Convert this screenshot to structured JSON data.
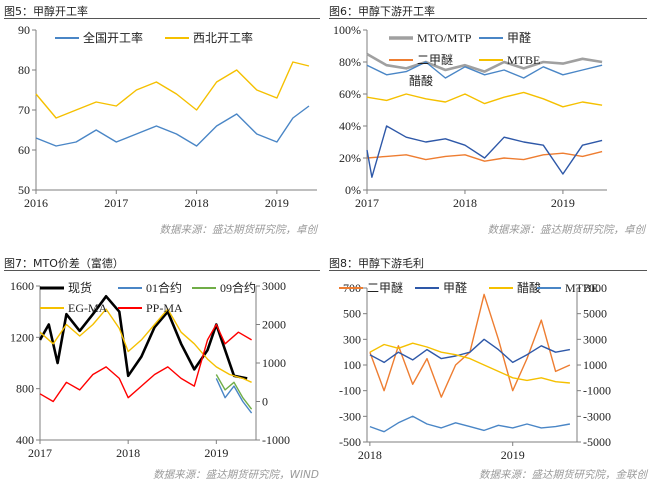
{
  "colors": {
    "blue": "#4a86c6",
    "yellow": "#f5c000",
    "gray": "#a0a0a0",
    "orange": "#ee7d31",
    "black": "#000000",
    "green": "#70ad47",
    "red": "#ff0000",
    "darkblue": "#2e58a8"
  },
  "charts": [
    {
      "title": "图5：甲醇开工率",
      "source": "数据来源：盛达期货研究院，卓创"
    },
    {
      "title": "图6：甲醇下游开工率",
      "source": "数据来源：盛达期货研究院，卓创"
    },
    {
      "title": "图7：MTO价差（富德）",
      "source": "数据来源：盛达期货研究院，WIND"
    },
    {
      "title": "图8：甲醇下游毛利",
      "source": "数据来源：盛达期货研究院，金联创"
    }
  ],
  "chart_data": [
    {
      "type": "line",
      "title": "",
      "x_ticks": [
        "2016",
        "2017",
        "2018",
        "2019"
      ],
      "x_range": [
        2016.0,
        2019.5
      ],
      "ylim": [
        50,
        90
      ],
      "y_ticks": [
        "50",
        "60",
        "70",
        "80",
        "90"
      ],
      "grid": false,
      "legend_position": "top",
      "series": [
        {
          "name": "全国开工率",
          "color": "#4a86c6",
          "x": [
            2016.0,
            2016.25,
            2016.5,
            2016.75,
            2017.0,
            2017.25,
            2017.5,
            2017.75,
            2018.0,
            2018.25,
            2018.5,
            2018.75,
            2019.0,
            2019.2,
            2019.4
          ],
          "y": [
            63,
            61,
            62,
            65,
            62,
            64,
            66,
            64,
            61,
            66,
            69,
            64,
            62,
            68,
            71
          ]
        },
        {
          "name": "西北开工率",
          "color": "#f5c000",
          "x": [
            2016.0,
            2016.25,
            2016.5,
            2016.75,
            2017.0,
            2017.25,
            2017.5,
            2017.75,
            2018.0,
            2018.25,
            2018.5,
            2018.75,
            2019.0,
            2019.2,
            2019.4
          ],
          "y": [
            74,
            68,
            70,
            72,
            71,
            75,
            77,
            74,
            70,
            77,
            80,
            75,
            73,
            82,
            81
          ]
        }
      ]
    },
    {
      "type": "line",
      "title": "",
      "x_ticks": [
        "2017",
        "2018",
        "2019"
      ],
      "x_range": [
        2017.0,
        2019.45
      ],
      "ylim": [
        0,
        100
      ],
      "y_ticks": [
        "0%",
        "20%",
        "40%",
        "60%",
        "80%",
        "100%"
      ],
      "y_unit": "%",
      "grid": false,
      "legend_position": "top",
      "series": [
        {
          "name": "MTO/MTP",
          "color": "#a0a0a0",
          "x": [
            2017.0,
            2017.2,
            2017.4,
            2017.6,
            2017.8,
            2018.0,
            2018.2,
            2018.4,
            2018.6,
            2018.8,
            2019.0,
            2019.2,
            2019.4
          ],
          "y": [
            85,
            78,
            76,
            80,
            75,
            78,
            74,
            80,
            76,
            80,
            79,
            82,
            80
          ]
        },
        {
          "name": "甲醛",
          "color": "#4a86c6",
          "x": [
            2017.0,
            2017.2,
            2017.4,
            2017.6,
            2017.8,
            2018.0,
            2018.2,
            2018.4,
            2018.6,
            2018.8,
            2019.0,
            2019.2,
            2019.4
          ],
          "y": [
            78,
            72,
            74,
            80,
            70,
            77,
            72,
            75,
            70,
            77,
            72,
            75,
            78
          ]
        },
        {
          "name": "二甲醚",
          "color": "#ee7d31",
          "x": [
            2017.0,
            2017.2,
            2017.4,
            2017.6,
            2017.8,
            2018.0,
            2018.2,
            2018.4,
            2018.6,
            2018.8,
            2019.0,
            2019.2,
            2019.4
          ],
          "y": [
            20,
            21,
            22,
            19,
            21,
            22,
            18,
            20,
            19,
            22,
            23,
            21,
            24
          ]
        },
        {
          "name": "MTBE",
          "color": "#f5c000",
          "x": [
            2017.0,
            2017.2,
            2017.4,
            2017.6,
            2017.8,
            2018.0,
            2018.2,
            2018.4,
            2018.6,
            2018.8,
            2019.0,
            2019.2,
            2019.4
          ],
          "y": [
            58,
            56,
            60,
            57,
            55,
            60,
            54,
            58,
            61,
            57,
            52,
            55,
            53
          ]
        },
        {
          "name": "醋酸",
          "color": "#2e58a8",
          "x": [
            2017.0,
            2017.05,
            2017.2,
            2017.4,
            2017.6,
            2017.8,
            2018.0,
            2018.2,
            2018.4,
            2018.6,
            2018.8,
            2019.0,
            2019.2,
            2019.4
          ],
          "y": [
            25,
            8,
            40,
            33,
            30,
            32,
            28,
            20,
            33,
            30,
            28,
            10,
            28,
            31
          ]
        }
      ]
    },
    {
      "type": "line",
      "title": "",
      "x_ticks": [
        "2017",
        "2018",
        "2019"
      ],
      "x_range": [
        2017.0,
        2019.45
      ],
      "ylim": [
        400,
        1600
      ],
      "y_ticks": [
        "400",
        "800",
        "1200",
        "1600"
      ],
      "y2lim": [
        -1000,
        3000
      ],
      "y2_ticks": [
        "-1000",
        "0",
        "1000",
        "2000",
        "3000"
      ],
      "grid": false,
      "legend_position": "top",
      "series": [
        {
          "name": "现货",
          "axis": "left",
          "color": "#000000",
          "x": [
            2017.0,
            2017.1,
            2017.2,
            2017.3,
            2017.45,
            2017.6,
            2017.75,
            2017.9,
            2018.0,
            2018.15,
            2018.3,
            2018.45,
            2018.6,
            2018.75,
            2018.9,
            2019.0,
            2019.2,
            2019.35
          ],
          "y": [
            1180,
            1300,
            1000,
            1380,
            1250,
            1380,
            1520,
            1400,
            900,
            1050,
            1280,
            1400,
            1150,
            950,
            1100,
            1300,
            900,
            880
          ]
        },
        {
          "name": "01合约",
          "axis": "right",
          "color": "#4a86c6",
          "x": [
            2019.0,
            2019.1,
            2019.2,
            2019.3,
            2019.4
          ],
          "y": [
            600,
            100,
            400,
            0,
            -300
          ]
        },
        {
          "name": "09合约",
          "axis": "right",
          "color": "#70ad47",
          "x": [
            2019.0,
            2019.1,
            2019.2,
            2019.3,
            2019.4
          ],
          "y": [
            700,
            300,
            500,
            100,
            -200
          ]
        },
        {
          "name": "EG-MA",
          "axis": "right",
          "color": "#f5c000",
          "x": [
            2017.0,
            2017.15,
            2017.3,
            2017.45,
            2017.6,
            2017.75,
            2017.9,
            2018.0,
            2018.15,
            2018.3,
            2018.45,
            2018.6,
            2018.75,
            2018.9,
            2019.0,
            2019.15,
            2019.3,
            2019.4
          ],
          "y": [
            1800,
            1500,
            2000,
            1700,
            2000,
            2400,
            1900,
            1300,
            1600,
            2000,
            2400,
            1800,
            1500,
            1100,
            900,
            700,
            600,
            500
          ]
        },
        {
          "name": "PP-MA",
          "axis": "right",
          "color": "#ff0000",
          "x": [
            2017.0,
            2017.15,
            2017.3,
            2017.45,
            2017.6,
            2017.75,
            2017.9,
            2018.0,
            2018.15,
            2018.3,
            2018.45,
            2018.6,
            2018.75,
            2018.9,
            2019.0,
            2019.1,
            2019.25,
            2019.4
          ],
          "y": [
            200,
            0,
            500,
            300,
            700,
            900,
            600,
            100,
            400,
            700,
            900,
            600,
            400,
            1600,
            2000,
            1500,
            1800,
            1600
          ]
        }
      ]
    },
    {
      "type": "line",
      "title": "",
      "x_ticks": [
        "2018",
        "2019"
      ],
      "x_range": [
        2017.98,
        2019.45
      ],
      "ylim": [
        -500,
        700
      ],
      "y_ticks": [
        "-500",
        "-300",
        "-100",
        "100",
        "300",
        "500",
        "700"
      ],
      "y2lim": [
        -5000,
        7000
      ],
      "y2_ticks": [
        "-5000",
        "-3000",
        "-1000",
        "1000",
        "3000",
        "5000",
        "7000"
      ],
      "grid": false,
      "legend_position": "top",
      "series": [
        {
          "name": "二甲醚",
          "axis": "left",
          "color": "#ee7d31",
          "x": [
            2018.0,
            2018.1,
            2018.2,
            2018.3,
            2018.4,
            2018.5,
            2018.6,
            2018.7,
            2018.8,
            2018.9,
            2019.0,
            2019.1,
            2019.2,
            2019.3,
            2019.4
          ],
          "y": [
            200,
            -100,
            250,
            -50,
            150,
            -150,
            100,
            200,
            650,
            300,
            -100,
            150,
            450,
            50,
            100
          ]
        },
        {
          "name": "甲醛",
          "axis": "left",
          "color": "#2e58a8",
          "x": [
            2018.0,
            2018.1,
            2018.2,
            2018.3,
            2018.4,
            2018.5,
            2018.6,
            2018.7,
            2018.8,
            2018.9,
            2019.0,
            2019.1,
            2019.2,
            2019.3,
            2019.4
          ],
          "y": [
            180,
            120,
            200,
            140,
            220,
            150,
            170,
            200,
            300,
            220,
            120,
            180,
            250,
            200,
            220
          ]
        },
        {
          "name": "醋酸",
          "axis": "right",
          "color": "#f5c000",
          "x": [
            2018.0,
            2018.1,
            2018.2,
            2018.3,
            2018.4,
            2018.5,
            2018.6,
            2018.7,
            2018.8,
            2018.9,
            2019.0,
            2019.1,
            2019.2,
            2019.3,
            2019.4
          ],
          "y": [
            2000,
            2600,
            2300,
            2700,
            2400,
            2000,
            1800,
            1500,
            1000,
            500,
            0,
            -200,
            0,
            -300,
            -400
          ]
        },
        {
          "name": "MTBE",
          "axis": "right",
          "color": "#4a86c6",
          "x": [
            2018.0,
            2018.1,
            2018.2,
            2018.3,
            2018.4,
            2018.5,
            2018.6,
            2018.7,
            2018.8,
            2018.9,
            2019.0,
            2019.1,
            2019.2,
            2019.3,
            2019.4
          ],
          "y": [
            -3800,
            -4200,
            -3500,
            -3000,
            -3600,
            -3900,
            -3500,
            -3800,
            -4100,
            -3700,
            -3900,
            -3600,
            -3900,
            -3800,
            -3600
          ]
        }
      ]
    }
  ]
}
